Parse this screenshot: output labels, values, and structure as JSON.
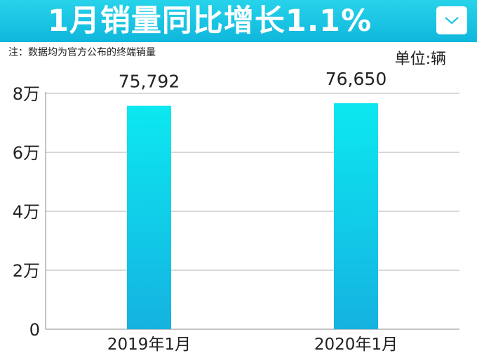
{
  "header": {
    "title": "1月销量同比增长1.1%",
    "menu_icon": "chevron-down-icon"
  },
  "note": "注：数据均为官方公布的终端销量",
  "unit_label": "单位:辆",
  "colors": {
    "header": "#1ec4e4",
    "bar_top": "#0ce8f0",
    "bar_bottom": "#15b2e0",
    "grid": "#b0b0b0"
  },
  "chart_data": {
    "type": "bar",
    "categories": [
      "2019年1月",
      "2020年1月"
    ],
    "values": [
      75792,
      76650
    ],
    "value_labels": [
      "75,792",
      "76,650"
    ],
    "ylim": [
      0,
      80000
    ],
    "yticks": [
      0,
      20000,
      40000,
      60000,
      80000
    ],
    "ytick_labels": [
      "0",
      "2万",
      "4万",
      "6万",
      "8万"
    ],
    "grid": true
  }
}
